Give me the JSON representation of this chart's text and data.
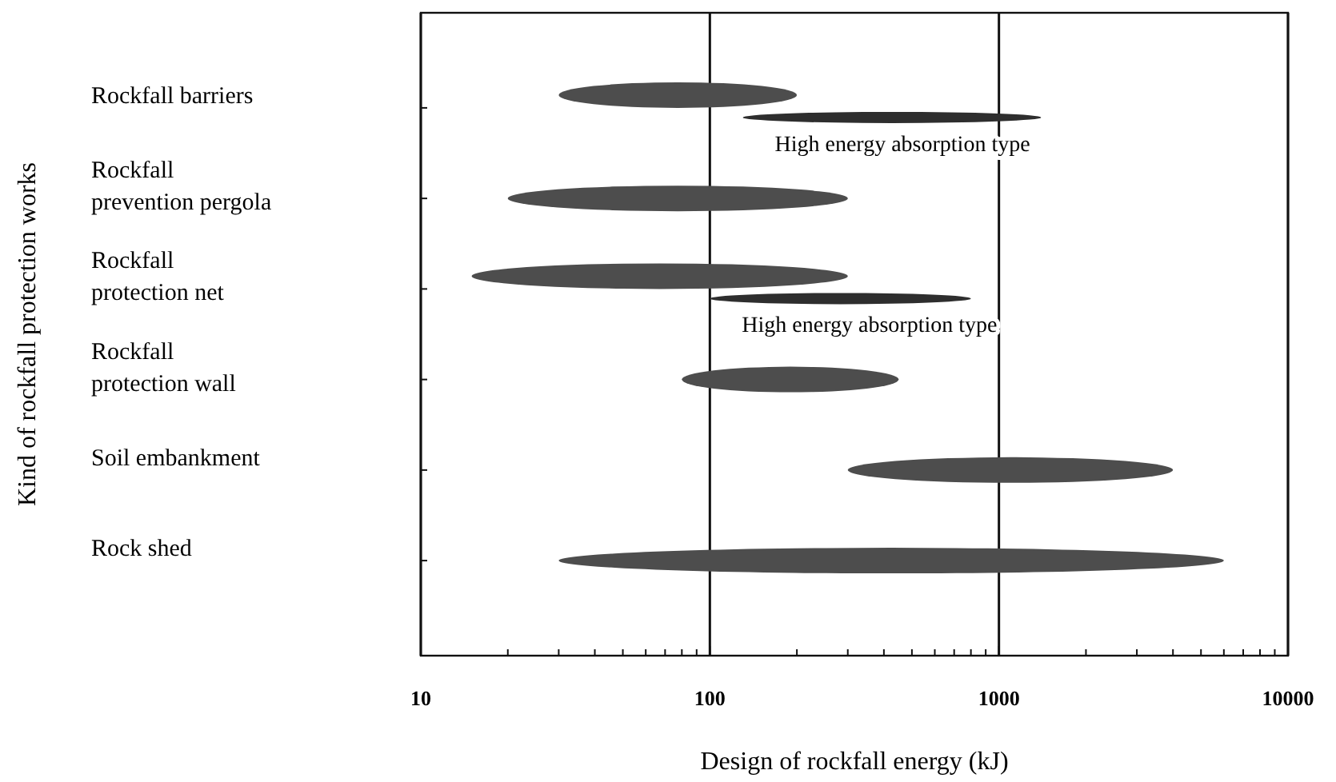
{
  "chart_data": {
    "type": "bar",
    "orientation": "horizontal",
    "xlabel": "Design of rockfall energy (kJ)",
    "ylabel": "Kind of rockfall protection works",
    "categories": [
      "Rockfall barriers",
      "Rockfall prevention pergola",
      "Rockfall protection net",
      "Rockfall protection wall",
      "Soil embankment",
      "Rock shed"
    ],
    "series": [
      {
        "color": "#4d4d4d",
        "base": [
          30,
          20,
          15,
          80,
          300,
          30
        ],
        "values": [
          170,
          280,
          285,
          370,
          3700,
          5970
        ]
      },
      {
        "color": "#2e2e2e",
        "base": [
          130,
          null,
          100,
          null,
          null,
          null
        ],
        "values": [
          1270,
          null,
          700,
          null,
          null,
          null
        ]
      }
    ],
    "annotations": [
      "High energy absorption type",
      "High energy absorption type"
    ],
    "log": "x",
    "xlim": [
      10,
      10000
    ],
    "xticks": [
      10,
      {
        "value": 20,
        "label": null
      },
      {
        "value": 30,
        "label": null
      },
      {
        "value": 40,
        "label": null
      },
      {
        "value": 50,
        "label": null
      },
      {
        "value": 60,
        "label": null
      },
      {
        "value": 70,
        "label": null
      },
      {
        "value": 80,
        "label": null
      },
      {
        "value": 90,
        "label": null
      },
      100,
      {
        "value": 200,
        "label": null
      },
      {
        "value": 300,
        "label": null
      },
      {
        "value": 400,
        "label": null
      },
      {
        "value": 500,
        "label": null
      },
      {
        "value": 600,
        "label": null
      },
      {
        "value": 700,
        "label": null
      },
      {
        "value": 800,
        "label": null
      },
      {
        "value": 900,
        "label": null
      },
      1000,
      {
        "value": 2000,
        "label": null
      },
      {
        "value": 3000,
        "label": null
      },
      {
        "value": 4000,
        "label": null
      },
      {
        "value": 5000,
        "label": null
      },
      {
        "value": 6000,
        "label": null
      },
      {
        "value": 7000,
        "label": null
      },
      {
        "value": 8000,
        "label": null
      },
      {
        "value": 9000,
        "label": null
      },
      10000
    ],
    "grid": "x"
  }
}
